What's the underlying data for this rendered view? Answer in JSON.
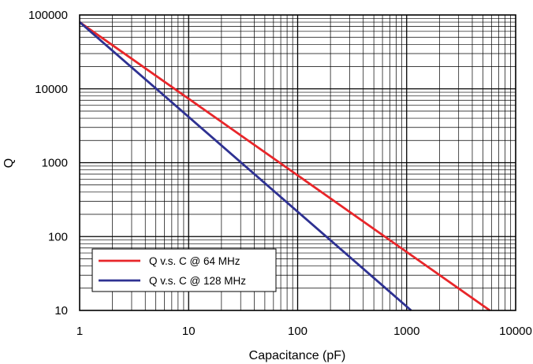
{
  "chart_data": {
    "type": "line",
    "title": "",
    "xlabel": "Capacitance (pF)",
    "ylabel": "Q",
    "xscale": "log",
    "yscale": "log",
    "xlim": [
      1,
      10000
    ],
    "ylim": [
      10,
      100000
    ],
    "grid": true,
    "legend_position": "bottom-left",
    "x_tick_labels": [
      "1",
      "10",
      "100",
      "1000",
      "10000"
    ],
    "y_tick_labels": [
      "100000",
      "10000",
      "1000",
      "100",
      "10"
    ],
    "series": [
      {
        "name": "Q v.s. C @ 64 MHz",
        "color": "#e8262a",
        "points": [
          [
            1,
            80000
          ],
          [
            5800,
            10
          ]
        ]
      },
      {
        "name": "Q v.s. C @ 128 MHz",
        "color": "#2e3192",
        "points": [
          [
            1,
            80000
          ],
          [
            1100,
            10
          ]
        ]
      }
    ]
  }
}
